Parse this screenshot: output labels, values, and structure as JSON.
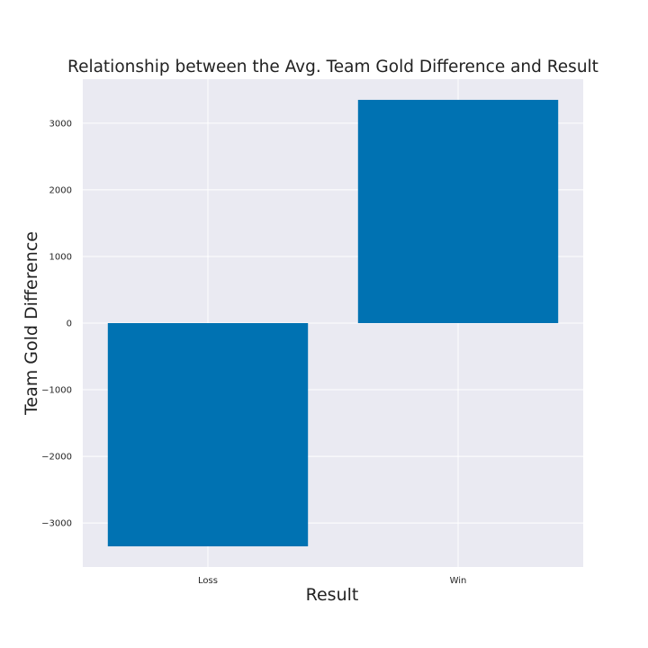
{
  "chart_data": {
    "type": "bar",
    "title": "Relationship between the Avg. Team Gold Difference and Result",
    "xlabel": "Result",
    "ylabel": "Team Gold Difference",
    "categories": [
      "Loss",
      "Win"
    ],
    "values": [
      -3350,
      3350
    ],
    "ylim": [
      -3660,
      3660
    ],
    "yticks": [
      -3000,
      -2000,
      -1000,
      0,
      1000,
      2000,
      3000
    ],
    "ytick_labels": [
      "−3000",
      "−2000",
      "−1000",
      "0",
      "1000",
      "2000",
      "3000"
    ],
    "grid": true,
    "legend": "none",
    "colors": {
      "bar": "#0072b2",
      "plot_background": "#eaeaf2",
      "grid": "#ffffff",
      "figure_background": "#ffffff"
    }
  }
}
